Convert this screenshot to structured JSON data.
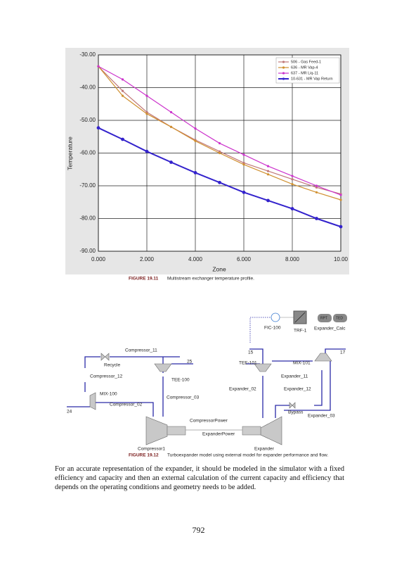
{
  "chart_data": {
    "type": "line",
    "xlabel": "Zone",
    "ylabel": "Temperature",
    "x": [
      0,
      1,
      2,
      3,
      4,
      5,
      6,
      7,
      8,
      9,
      10
    ],
    "series": [
      {
        "name": "506 - Gas Feed-1",
        "color": "#c07878",
        "values": [
          -33.5,
          -41,
          -47.5,
          -52,
          -56,
          -59.5,
          -63,
          -65.5,
          -68,
          -70.5,
          -72.5
        ]
      },
      {
        "name": "636 - MR Vap-4",
        "color": "#d09030",
        "values": [
          -33.5,
          -42.5,
          -48,
          -52,
          -56.3,
          -60,
          -63.5,
          -66.5,
          -69.5,
          -72,
          -74.3
        ]
      },
      {
        "name": "637 - MR Liq-11",
        "color": "#cc33cc",
        "values": [
          -33.5,
          -37.5,
          -42.5,
          -47.5,
          -52.5,
          -57,
          -60.5,
          -64,
          -67,
          -70,
          -72.8
        ]
      },
      {
        "name": "10-631 - MR Vap Return",
        "color": "#3322cc",
        "values": [
          -52.3,
          -55.8,
          -59.5,
          -62.8,
          -66,
          -69,
          -72,
          -74.5,
          -77,
          -80,
          -82.5
        ]
      }
    ],
    "xlim": [
      0,
      10
    ],
    "xticks": [
      {
        "value": 0,
        "label": "0.000"
      },
      {
        "value": 2,
        "label": "2.000"
      },
      {
        "value": 4,
        "label": "4.000"
      },
      {
        "value": 6,
        "label": "6.000"
      },
      {
        "value": 8,
        "label": "8.000"
      },
      {
        "value": 10,
        "label": "10.00"
      }
    ],
    "ylim": [
      -90,
      -30
    ],
    "yticks": [
      {
        "value": -90,
        "label": "-90.00"
      },
      {
        "value": -80,
        "label": "-80.00"
      },
      {
        "value": -70,
        "label": "-70.00"
      },
      {
        "value": -60,
        "label": "-60.00"
      },
      {
        "value": -50,
        "label": "-50.00"
      },
      {
        "value": -40,
        "label": "-40.00"
      },
      {
        "value": -30,
        "label": "-30.00"
      }
    ],
    "grid": true,
    "legend": "upper right"
  },
  "figure_19_11": {
    "number": "FIGURE 19.11",
    "caption": "Multistream exchanger temperature profile."
  },
  "diagram": {
    "labels": {
      "fic": "FIC-100",
      "trf": "TRF-1",
      "rpt": "RPT",
      "ted": "TED",
      "calc": "Expander_Calc",
      "comp11": "Compressor_11",
      "recycle": "Recycle",
      "comp12": "Compressor_12",
      "s25": "25",
      "tee100": "TEE-100",
      "mix100": "MIX-100",
      "comp03": "Compressor_03",
      "comp02": "Compressor_02",
      "s24": "24",
      "s15": "15",
      "tee101": "TEE-101",
      "mix101": "MIX-101",
      "s17": "17",
      "exp11": "Expander_11",
      "exp02": "Expander_02",
      "exp12": "Expander_12",
      "bypass": "Bypass",
      "exp03": "Expander_03",
      "cpower": "CompressorPower",
      "epower": "ExpanderPower",
      "comp1": "Compressor1",
      "expander": "Expander"
    }
  },
  "figure_19_12": {
    "number": "FIGURE 19.12",
    "caption": "Turboexpander model using external model for expander performance and flow."
  },
  "body": "For an accurate representation of the expander, it should be modeled in the simulator with a fixed efficiency and capacity and then an external calculation of the current capacity and efficiency that depends on the operating conditions and geometry needs to be added.",
  "page_number": "792"
}
